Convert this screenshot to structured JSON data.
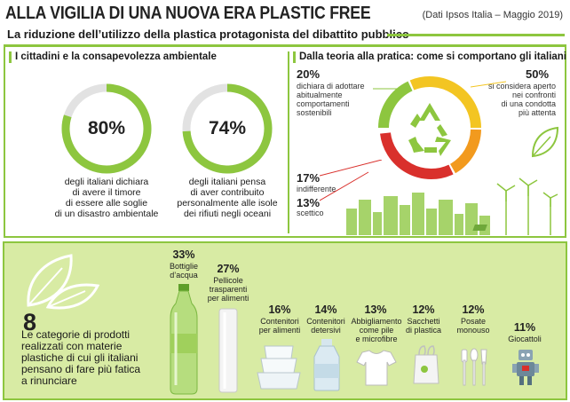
{
  "header": {
    "title": "ALLA VIGILIA DI UNA NUOVA ERA PLASTIC FREE",
    "source": "(Dati Ipsos Italia – Maggio 2019)",
    "subtitle": "La riduzione dell’utilizzo della plastica protagonista del dibattito pubblico"
  },
  "left_section": {
    "heading": "I cittadini e la consapevolezza ambientale",
    "stats": [
      {
        "value": "80%",
        "fraction": 0.8,
        "line1": "degli italiani dichiara",
        "line2": "di avere il timore",
        "line3": "di essere alle soglie",
        "line4": "di un disastro ambientale"
      },
      {
        "value": "74%",
        "fraction": 0.74,
        "line1": "degli italiani pensa",
        "line2": "di aver contribuito",
        "line3": "personalmente alle isole",
        "line4": "dei rifiuti negli oceani"
      }
    ]
  },
  "right_section": {
    "heading": "Dalla teoria alla pratica: come si comportano gli italiani",
    "items": [
      {
        "value": "20%",
        "line1": "dichiara di adottare",
        "line2": "abitualmente",
        "line3": "comportamenti sostenibili"
      },
      {
        "value": "50%",
        "line1": "si considera aperto",
        "line2": "nei confronti",
        "line3": "di una condotta",
        "line4": "più attenta"
      },
      {
        "value": "17%",
        "line1": "indifferente"
      },
      {
        "value": "13%",
        "line1": "scettico"
      }
    ]
  },
  "bottom": {
    "count": "8",
    "desc1": "Le categorie di prodotti",
    "desc2": "realizzati con materie",
    "desc3": "plastiche di cui gli italiani",
    "desc4": "pensano di fare più fatica",
    "desc5": "a rinunciare",
    "categories": [
      {
        "value": "33%",
        "l1": "Bottiglie",
        "l2": "d’acqua",
        "l3": ""
      },
      {
        "value": "27%",
        "l1": "Pellicole",
        "l2": "trasparenti",
        "l3": "per alimenti"
      },
      {
        "value": "16%",
        "l1": "Contenitori",
        "l2": "per alimenti",
        "l3": ""
      },
      {
        "value": "14%",
        "l1": "Contenitori",
        "l2": "detersivi",
        "l3": ""
      },
      {
        "value": "13%",
        "l1": "Abbigliamento",
        "l2": "come pile",
        "l3": "e microfibre"
      },
      {
        "value": "12%",
        "l1": "Sacchetti",
        "l2": "di plastica",
        "l3": ""
      },
      {
        "value": "12%",
        "l1": "Posate",
        "l2": "monouso",
        "l3": ""
      },
      {
        "value": "11%",
        "l1": "Giocattoli",
        "l2": "",
        "l3": ""
      }
    ]
  },
  "colors": {
    "green": "#8dc63f",
    "dark_green": "#5e9e2a",
    "light_green_bg": "#d8eba4",
    "red": "#d9302c",
    "orange": "#f29a1e",
    "yellow": "#f3c522"
  }
}
